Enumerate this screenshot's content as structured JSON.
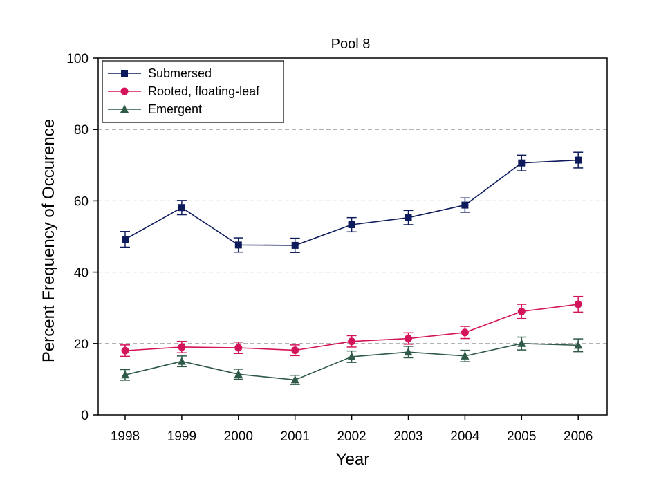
{
  "chart_data": {
    "type": "line",
    "title": "Pool 8",
    "xlabel": "Year",
    "ylabel": "Percent Frequency of Occurence",
    "x": [
      "1998",
      "1999",
      "2000",
      "2001",
      "2002",
      "2003",
      "2004",
      "2005",
      "2006"
    ],
    "ylim": [
      0,
      100
    ],
    "yticks": [
      0,
      20,
      40,
      60,
      80,
      100
    ],
    "grid": "horizontal dashed at 20, 40, 60, 80",
    "legend_position": "top-left",
    "series": [
      {
        "name": "Submersed",
        "color": "#0d1a5c",
        "marker": "square",
        "values": [
          49.2,
          58.1,
          47.6,
          47.5,
          53.3,
          55.3,
          58.8,
          70.6,
          71.4
        ],
        "errors": [
          2.2,
          2.0,
          2.0,
          2.0,
          2.0,
          2.0,
          2.0,
          2.2,
          2.2
        ]
      },
      {
        "name": "Rooted, floating-leaf",
        "color": "#d4145a",
        "marker": "circle",
        "values": [
          18.0,
          19.0,
          18.8,
          18.1,
          20.6,
          21.4,
          23.1,
          29.0,
          31.0
        ],
        "errors": [
          1.6,
          1.6,
          1.6,
          1.5,
          1.6,
          1.6,
          1.7,
          2.0,
          2.2
        ]
      },
      {
        "name": "Emergent",
        "color": "#2f5a47",
        "marker": "triangle",
        "values": [
          11.2,
          15.0,
          11.4,
          9.8,
          16.3,
          17.6,
          16.5,
          20.0,
          19.5
        ],
        "errors": [
          1.5,
          1.5,
          1.4,
          1.3,
          1.6,
          1.6,
          1.6,
          1.8,
          1.8
        ]
      }
    ]
  }
}
